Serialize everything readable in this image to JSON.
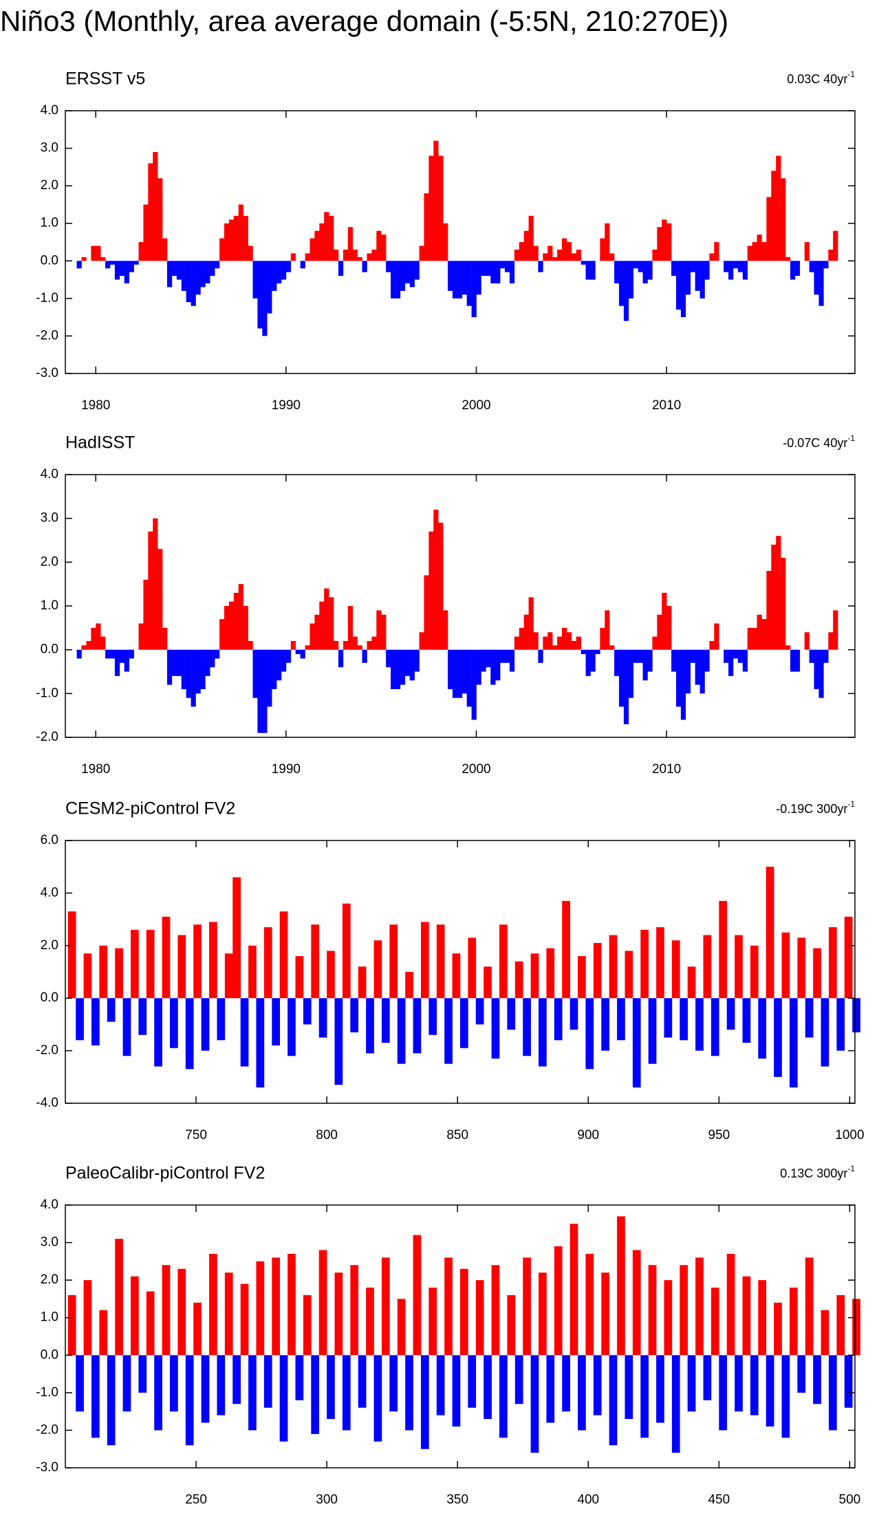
{
  "title": "Niño3 (Monthly, area average domain (-5:5N, 210:270E))",
  "chart_data": [
    {
      "type": "bar",
      "title": "ERSST v5",
      "annotation": "0.03C 40yr",
      "annotation_sup": "-1",
      "pos_color": "#ff0000",
      "neg_color": "#0000ff",
      "xlim": [
        1978.4,
        2019.9
      ],
      "xticks": [
        1980,
        1990,
        2000,
        2010
      ],
      "ylim": [
        -3,
        4
      ],
      "yticks": [
        {
          "value": -3,
          "label": "-3.0"
        },
        {
          "value": -2,
          "label": "-2.0"
        },
        {
          "value": -1,
          "label": "-1.0"
        },
        {
          "value": 0,
          "label": "0.0"
        },
        {
          "value": 1,
          "label": "1.0"
        },
        {
          "value": 2,
          "label": "2.0"
        },
        {
          "value": 3,
          "label": "3.0"
        },
        {
          "value": 4,
          "label": "4.0"
        }
      ],
      "x": [
        1979,
        1979.25,
        1979.5,
        1979.75,
        1980,
        1980.25,
        1980.5,
        1980.75,
        1981,
        1981.25,
        1981.5,
        1981.75,
        1982,
        1982.25,
        1982.5,
        1982.75,
        1983,
        1983.25,
        1983.5,
        1983.75,
        1984,
        1984.25,
        1984.5,
        1984.75,
        1985,
        1985.25,
        1985.5,
        1985.75,
        1986,
        1986.25,
        1986.5,
        1986.75,
        1987,
        1987.25,
        1987.5,
        1987.75,
        1988,
        1988.25,
        1988.5,
        1988.75,
        1989,
        1989.25,
        1989.5,
        1989.75,
        1990,
        1990.25,
        1990.5,
        1990.75,
        1991,
        1991.25,
        1991.5,
        1991.75,
        1992,
        1992.25,
        1992.5,
        1992.75,
        1993,
        1993.25,
        1993.5,
        1993.75,
        1994,
        1994.25,
        1994.5,
        1994.75,
        1995,
        1995.25,
        1995.5,
        1995.75,
        1996,
        1996.25,
        1996.5,
        1996.75,
        1997,
        1997.25,
        1997.5,
        1997.75,
        1998,
        1998.25,
        1998.5,
        1998.75,
        1999,
        1999.25,
        1999.5,
        1999.75,
        2000,
        2000.25,
        2000.5,
        2000.75,
        2001,
        2001.25,
        2001.5,
        2001.75,
        2002,
        2002.25,
        2002.5,
        2002.75,
        2003,
        2003.25,
        2003.5,
        2003.75,
        2004,
        2004.25,
        2004.5,
        2004.75,
        2005,
        2005.25,
        2005.5,
        2005.75,
        2006,
        2006.25,
        2006.5,
        2006.75,
        2007,
        2007.25,
        2007.5,
        2007.75,
        2008,
        2008.25,
        2008.5,
        2008.75,
        2009,
        2009.25,
        2009.5,
        2009.75,
        2010,
        2010.25,
        2010.5,
        2010.75,
        2011,
        2011.25,
        2011.5,
        2011.75,
        2012,
        2012.25,
        2012.5,
        2012.75,
        2013,
        2013.25,
        2013.5,
        2013.75,
        2014,
        2014.25,
        2014.5,
        2014.75,
        2015,
        2015.25,
        2015.5,
        2015.75,
        2016,
        2016.25,
        2016.5,
        2016.75,
        2017,
        2017.25,
        2017.5,
        2017.75,
        2018,
        2018.25,
        2018.5,
        2018.75
      ],
      "values": [
        -0.2,
        0.1,
        0.0,
        0.4,
        0.4,
        0.1,
        -0.2,
        -0.1,
        -0.5,
        -0.4,
        -0.6,
        -0.3,
        -0.1,
        0.5,
        1.5,
        2.6,
        2.9,
        2.2,
        0.6,
        -0.7,
        -0.4,
        -0.5,
        -0.8,
        -1.1,
        -1.2,
        -0.9,
        -0.7,
        -0.6,
        -0.4,
        -0.2,
        0.6,
        1.0,
        1.1,
        1.2,
        1.5,
        1.2,
        0.4,
        -1.0,
        -1.8,
        -2.0,
        -1.4,
        -0.8,
        -0.6,
        -0.5,
        -0.3,
        0.2,
        0.0,
        -0.2,
        0.2,
        0.6,
        0.8,
        1.0,
        1.3,
        1.2,
        0.3,
        -0.4,
        0.3,
        0.9,
        0.3,
        0.1,
        -0.3,
        0.2,
        0.3,
        0.8,
        0.7,
        -0.3,
        -1.0,
        -1.0,
        -0.8,
        -0.6,
        -0.7,
        -0.5,
        0.4,
        1.8,
        2.8,
        3.2,
        2.8,
        1.0,
        -0.8,
        -1.0,
        -1.0,
        -0.9,
        -1.2,
        -1.5,
        -0.9,
        -0.4,
        -0.4,
        -0.6,
        -0.6,
        -0.2,
        -0.3,
        -0.6,
        0.3,
        0.5,
        0.8,
        1.2,
        0.4,
        -0.3,
        0.2,
        0.4,
        0.1,
        0.3,
        0.6,
        0.5,
        0.2,
        0.3,
        -0.1,
        -0.5,
        -0.5,
        0.0,
        0.6,
        1.0,
        0.2,
        -0.6,
        -1.2,
        -1.6,
        -1.0,
        -0.2,
        -0.3,
        -0.6,
        -0.5,
        0.3,
        0.9,
        1.1,
        1.0,
        -0.4,
        -1.3,
        -1.5,
        -0.9,
        -0.3,
        -0.8,
        -1.0,
        -0.5,
        0.2,
        0.5,
        0.0,
        -0.3,
        -0.5,
        -0.2,
        -0.3,
        -0.5,
        0.4,
        0.5,
        0.7,
        0.5,
        1.7,
        2.4,
        2.8,
        2.2,
        0.1,
        -0.5,
        -0.4,
        0.0,
        0.5,
        -0.3,
        -0.9,
        -1.2,
        -0.2,
        0.3,
        0.8
      ]
    },
    {
      "type": "bar",
      "title": "HadISST",
      "annotation": "-0.07C 40yr",
      "annotation_sup": "-1",
      "pos_color": "#ff0000",
      "neg_color": "#0000ff",
      "xlim": [
        1978.4,
        2019.9
      ],
      "xticks": [
        1980,
        1990,
        2000,
        2010
      ],
      "ylim": [
        -2,
        4
      ],
      "yticks": [
        {
          "value": -2,
          "label": "-2.0"
        },
        {
          "value": -1,
          "label": "-1.0"
        },
        {
          "value": 0,
          "label": "0.0"
        },
        {
          "value": 1,
          "label": "1.0"
        },
        {
          "value": 2,
          "label": "2.0"
        },
        {
          "value": 3,
          "label": "3.0"
        },
        {
          "value": 4,
          "label": "4.0"
        }
      ],
      "x": [
        1979,
        1979.25,
        1979.5,
        1979.75,
        1980,
        1980.25,
        1980.5,
        1980.75,
        1981,
        1981.25,
        1981.5,
        1981.75,
        1982,
        1982.25,
        1982.5,
        1982.75,
        1983,
        1983.25,
        1983.5,
        1983.75,
        1984,
        1984.25,
        1984.5,
        1984.75,
        1985,
        1985.25,
        1985.5,
        1985.75,
        1986,
        1986.25,
        1986.5,
        1986.75,
        1987,
        1987.25,
        1987.5,
        1987.75,
        1988,
        1988.25,
        1988.5,
        1988.75,
        1989,
        1989.25,
        1989.5,
        1989.75,
        1990,
        1990.25,
        1990.5,
        1990.75,
        1991,
        1991.25,
        1991.5,
        1991.75,
        1992,
        1992.25,
        1992.5,
        1992.75,
        1993,
        1993.25,
        1993.5,
        1993.75,
        1994,
        1994.25,
        1994.5,
        1994.75,
        1995,
        1995.25,
        1995.5,
        1995.75,
        1996,
        1996.25,
        1996.5,
        1996.75,
        1997,
        1997.25,
        1997.5,
        1997.75,
        1998,
        1998.25,
        1998.5,
        1998.75,
        1999,
        1999.25,
        1999.5,
        1999.75,
        2000,
        2000.25,
        2000.5,
        2000.75,
        2001,
        2001.25,
        2001.5,
        2001.75,
        2002,
        2002.25,
        2002.5,
        2002.75,
        2003,
        2003.25,
        2003.5,
        2003.75,
        2004,
        2004.25,
        2004.5,
        2004.75,
        2005,
        2005.25,
        2005.5,
        2005.75,
        2006,
        2006.25,
        2006.5,
        2006.75,
        2007,
        2007.25,
        2007.5,
        2007.75,
        2008,
        2008.25,
        2008.5,
        2008.75,
        2009,
        2009.25,
        2009.5,
        2009.75,
        2010,
        2010.25,
        2010.5,
        2010.75,
        2011,
        2011.25,
        2011.5,
        2011.75,
        2012,
        2012.25,
        2012.5,
        2012.75,
        2013,
        2013.25,
        2013.5,
        2013.75,
        2014,
        2014.25,
        2014.5,
        2014.75,
        2015,
        2015.25,
        2015.5,
        2015.75,
        2016,
        2016.25,
        2016.5,
        2016.75,
        2017,
        2017.25,
        2017.5,
        2017.75,
        2018,
        2018.25,
        2018.5,
        2018.75
      ],
      "values": [
        -0.2,
        0.1,
        0.2,
        0.5,
        0.6,
        0.3,
        -0.2,
        -0.2,
        -0.6,
        -0.3,
        -0.5,
        -0.2,
        0.0,
        0.6,
        1.6,
        2.7,
        3.0,
        2.3,
        0.5,
        -0.8,
        -0.6,
        -0.6,
        -0.9,
        -1.1,
        -1.3,
        -1.0,
        -0.9,
        -0.6,
        -0.4,
        -0.2,
        0.7,
        1.0,
        1.1,
        1.3,
        1.5,
        1.0,
        0.2,
        -1.1,
        -1.9,
        -1.9,
        -1.3,
        -0.9,
        -0.7,
        -0.5,
        -0.3,
        0.2,
        -0.1,
        -0.2,
        0.1,
        0.6,
        0.8,
        1.1,
        1.4,
        1.2,
        0.2,
        -0.4,
        0.2,
        1.0,
        0.3,
        0.1,
        -0.3,
        0.2,
        0.3,
        0.9,
        0.8,
        -0.4,
        -0.9,
        -0.9,
        -0.8,
        -0.6,
        -0.7,
        -0.5,
        0.4,
        1.7,
        2.7,
        3.2,
        2.9,
        0.9,
        -0.9,
        -1.1,
        -1.1,
        -1.0,
        -1.3,
        -1.6,
        -0.8,
        -0.5,
        -0.4,
        -0.8,
        -0.7,
        -0.3,
        -0.3,
        -0.5,
        0.3,
        0.5,
        0.8,
        1.2,
        0.4,
        -0.3,
        0.3,
        0.4,
        0.1,
        0.3,
        0.5,
        0.4,
        0.2,
        0.3,
        -0.1,
        -0.6,
        -0.5,
        -0.1,
        0.5,
        0.9,
        0.1,
        -0.6,
        -1.3,
        -1.7,
        -1.1,
        -0.3,
        -0.3,
        -0.7,
        -0.5,
        0.3,
        0.8,
        1.3,
        1.0,
        -0.5,
        -1.3,
        -1.6,
        -1.0,
        -0.3,
        -0.8,
        -1.0,
        -0.5,
        0.2,
        0.6,
        0.0,
        -0.3,
        -0.6,
        -0.2,
        -0.3,
        -0.5,
        0.5,
        0.5,
        0.8,
        0.7,
        1.8,
        2.4,
        2.6,
        2.1,
        0.1,
        -0.5,
        -0.5,
        0.0,
        0.4,
        -0.3,
        -0.9,
        -1.1,
        -0.3,
        0.4,
        0.9
      ]
    },
    {
      "type": "bar",
      "title": "CESM2-piControl FV2",
      "annotation": "-0.19C 300yr",
      "annotation_sup": "-1",
      "pos_color": "#ff0000",
      "neg_color": "#0000ff",
      "xlim": [
        700,
        1002
      ],
      "xticks": [
        750,
        800,
        850,
        900,
        950,
        1000
      ],
      "ylim": [
        -4,
        6
      ],
      "yticks": [
        {
          "value": -4,
          "label": "-4.0"
        },
        {
          "value": -2,
          "label": "-2.0"
        },
        {
          "value": 0,
          "label": "0.0"
        },
        {
          "value": 2,
          "label": "2.0"
        },
        {
          "value": 4,
          "label": "4.0"
        },
        {
          "value": 6,
          "label": "6.0"
        }
      ],
      "x": [
        701,
        704,
        707,
        710,
        713,
        716,
        719,
        722,
        725,
        728,
        731,
        734,
        737,
        740,
        743,
        746,
        749,
        752,
        755,
        758,
        761,
        764,
        767,
        770,
        773,
        776,
        779,
        782,
        785,
        788,
        791,
        794,
        797,
        800,
        803,
        806,
        809,
        812,
        815,
        818,
        821,
        824,
        827,
        830,
        833,
        836,
        839,
        842,
        845,
        848,
        851,
        854,
        857,
        860,
        863,
        866,
        869,
        872,
        875,
        878,
        881,
        884,
        887,
        890,
        893,
        896,
        899,
        902,
        905,
        908,
        911,
        914,
        917,
        920,
        923,
        926,
        929,
        932,
        935,
        938,
        941,
        944,
        947,
        950,
        953,
        956,
        959,
        962,
        965,
        968,
        971,
        974,
        977,
        980,
        983,
        986,
        989,
        992,
        995,
        998,
        1001
      ],
      "values": [
        3.3,
        -1.6,
        1.7,
        -1.8,
        2.0,
        -0.9,
        1.9,
        -2.2,
        2.6,
        -1.4,
        2.6,
        -2.6,
        3.1,
        -1.9,
        2.4,
        -2.7,
        2.8,
        -2.0,
        2.9,
        -1.6,
        1.7,
        4.6,
        -2.6,
        2.0,
        -3.4,
        2.7,
        -1.8,
        3.3,
        -2.2,
        1.6,
        -1.0,
        2.8,
        -1.5,
        1.8,
        -3.3,
        3.6,
        -1.3,
        1.2,
        -2.1,
        2.2,
        -1.7,
        2.8,
        -2.5,
        1.0,
        -2.1,
        2.9,
        -1.4,
        2.8,
        -2.5,
        1.7,
        -1.9,
        2.3,
        -1.0,
        1.2,
        -2.3,
        2.8,
        -1.2,
        1.4,
        -2.2,
        1.7,
        -2.6,
        1.9,
        -1.6,
        3.7,
        -1.2,
        1.6,
        -2.7,
        2.1,
        -2.0,
        2.4,
        -1.6,
        1.8,
        -3.4,
        2.6,
        -2.5,
        2.7,
        -1.5,
        2.2,
        -1.6,
        1.2,
        -2.0,
        2.4,
        -2.2,
        3.7,
        -1.2,
        2.4,
        -1.7,
        2.0,
        -2.3,
        5.0,
        -3.0,
        2.5,
        -3.4,
        2.3,
        -1.5,
        1.9,
        -2.6,
        2.7,
        -2.0,
        3.1,
        -1.3
      ]
    },
    {
      "type": "bar",
      "title": "PaleoCalibr-piControl FV2",
      "annotation": "0.13C 300yr",
      "annotation_sup": "-1",
      "pos_color": "#ff0000",
      "neg_color": "#0000ff",
      "xlim": [
        200,
        502
      ],
      "xticks": [
        250,
        300,
        350,
        400,
        450,
        500
      ],
      "ylim": [
        -3,
        4
      ],
      "yticks": [
        {
          "value": -3,
          "label": "-3.0"
        },
        {
          "value": -2,
          "label": "-2.0"
        },
        {
          "value": -1,
          "label": "-1.0"
        },
        {
          "value": 0,
          "label": "0.0"
        },
        {
          "value": 1,
          "label": "1.0"
        },
        {
          "value": 2,
          "label": "2.0"
        },
        {
          "value": 3,
          "label": "3.0"
        },
        {
          "value": 4,
          "label": "4.0"
        }
      ],
      "x": [
        201,
        204,
        207,
        210,
        213,
        216,
        219,
        222,
        225,
        228,
        231,
        234,
        237,
        240,
        243,
        246,
        249,
        252,
        255,
        258,
        261,
        264,
        267,
        270,
        273,
        276,
        279,
        282,
        285,
        288,
        291,
        294,
        297,
        300,
        303,
        306,
        309,
        312,
        315,
        318,
        321,
        324,
        327,
        330,
        333,
        336,
        339,
        342,
        345,
        348,
        351,
        354,
        357,
        360,
        363,
        366,
        369,
        372,
        375,
        378,
        381,
        384,
        387,
        390,
        393,
        396,
        399,
        402,
        405,
        408,
        411,
        414,
        417,
        420,
        423,
        426,
        429,
        432,
        435,
        438,
        441,
        444,
        447,
        450,
        453,
        456,
        459,
        462,
        465,
        468,
        471,
        474,
        477,
        480,
        483,
        486,
        489,
        492,
        495,
        498,
        501
      ],
      "values": [
        1.6,
        -1.5,
        2.0,
        -2.2,
        1.2,
        -2.4,
        3.1,
        -1.5,
        2.1,
        -1.0,
        1.7,
        -2.0,
        2.4,
        -1.5,
        2.3,
        -2.4,
        1.4,
        -1.8,
        2.7,
        -1.6,
        2.2,
        -1.3,
        1.9,
        -2.0,
        2.5,
        -1.4,
        2.6,
        -2.3,
        2.7,
        -1.2,
        1.6,
        -2.1,
        2.8,
        -1.7,
        2.2,
        -2.0,
        2.4,
        -1.4,
        1.8,
        -2.3,
        2.6,
        -1.5,
        1.5,
        -2.0,
        3.2,
        -2.5,
        1.8,
        -1.6,
        2.6,
        -1.9,
        2.3,
        -1.4,
        2.0,
        -1.7,
        2.4,
        -2.2,
        1.6,
        -1.3,
        2.6,
        -2.6,
        2.2,
        -1.8,
        2.9,
        -1.5,
        3.5,
        -2.0,
        2.7,
        -1.6,
        2.2,
        -2.4,
        3.7,
        -1.7,
        2.8,
        -2.2,
        2.4,
        -1.8,
        2.0,
        -2.6,
        2.4,
        -1.5,
        2.6,
        -1.2,
        1.8,
        -2.0,
        2.7,
        -1.5,
        2.1,
        -1.6,
        2.0,
        -1.9,
        1.4,
        -2.2,
        1.8,
        -1.0,
        2.6,
        -1.3,
        1.2,
        -2.0,
        1.6,
        -1.4,
        1.5
      ]
    }
  ]
}
